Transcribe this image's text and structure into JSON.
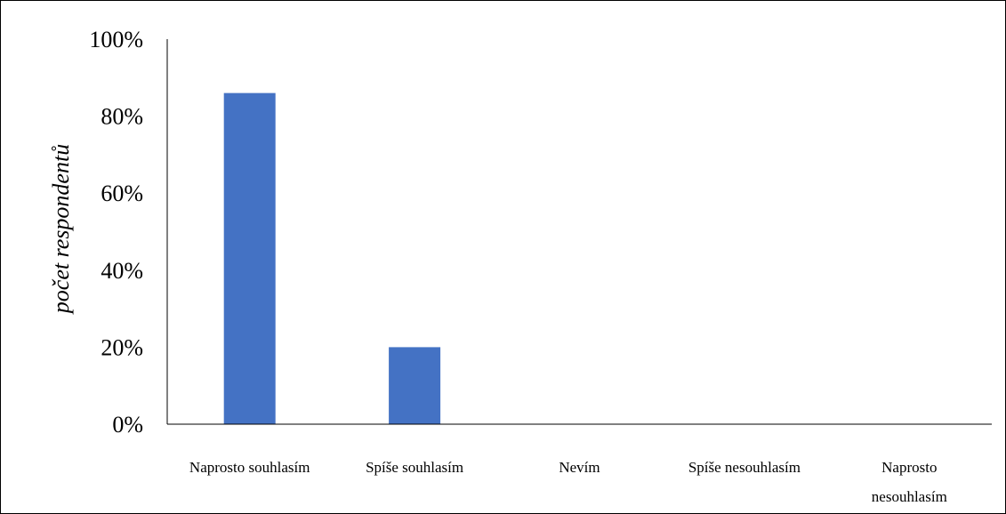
{
  "chart_data": {
    "type": "bar",
    "title": "",
    "xlabel": "",
    "ylabel": "počet respondentů",
    "categories": [
      [
        "Naprosto souhlasím"
      ],
      [
        "Spíše souhlasím"
      ],
      [
        "Nevím"
      ],
      [
        "Spíše nesouhlasím"
      ],
      [
        "Naprosto",
        "nesouhlasím"
      ]
    ],
    "values": [
      86,
      20,
      0,
      0,
      0
    ],
    "ylim": [
      0,
      100
    ],
    "y_ticks": [
      0,
      20,
      40,
      60,
      80,
      100
    ],
    "y_tick_suffix": "%",
    "bar_color": "#4472C4",
    "grid": false,
    "legend": "none"
  }
}
